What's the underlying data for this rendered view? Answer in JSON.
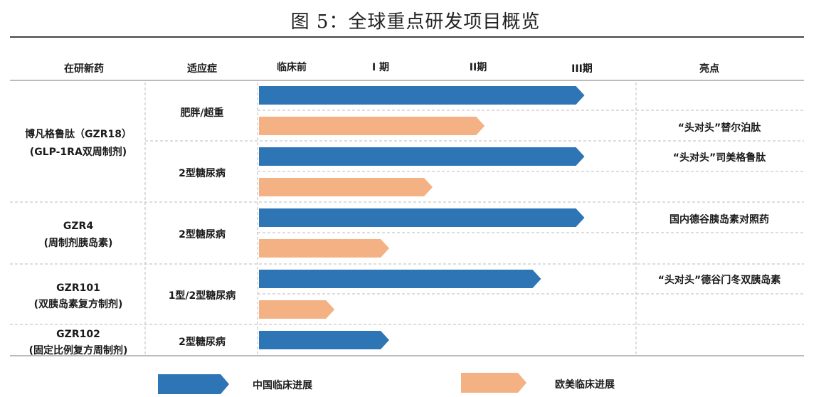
{
  "title": "图 5：全球重点研发项目概览",
  "header": {
    "drug": "在研新药",
    "indication": "适应症",
    "preclinical": "临床前",
    "phase1": "I 期",
    "phase2": "II期",
    "phase3": "III期",
    "highlight": "亮点"
  },
  "colors": {
    "china": "#2e75b6",
    "west": "#f4b183"
  },
  "legend": {
    "china": "中国临床进展",
    "west": "欧美临床进展"
  },
  "drugs": [
    {
      "name": "博凡格鲁肽（GZR18）",
      "sub": "(GLP-1RA双周制剂)"
    },
    {
      "name": "GZR4",
      "sub": "(周制剂胰岛素)"
    },
    {
      "name": "GZR101",
      "sub": "(双胰岛素复方制剂)"
    },
    {
      "name": "GZR102",
      "sub": "(固定比例复方周制剂)"
    }
  ],
  "indications": [
    "肥胖/超重",
    "2型糖尿病",
    "2型糖尿病",
    "1型/2型糖尿病",
    "2型糖尿病"
  ],
  "highlights": [
    "“头对头”替尔泊肽",
    "“头对头”司美格鲁肽",
    "国内德谷胰岛素对照药",
    "“头对头”德谷门冬双胰岛素"
  ],
  "chart_data": {
    "type": "bar",
    "orientation": "horizontal",
    "stage_categories": [
      "临床前",
      "I 期",
      "II期",
      "III期"
    ],
    "bars": [
      {
        "drug": "博凡格鲁肽（GZR18）",
        "indication": "肥胖/超重",
        "region": "中国临床进展",
        "progress": 3.75
      },
      {
        "drug": "博凡格鲁肽（GZR18）",
        "indication": "肥胖/超重",
        "region": "欧美临床进展",
        "progress": 2.6
      },
      {
        "drug": "博凡格鲁肽（GZR18）",
        "indication": "2型糖尿病",
        "region": "中国临床进展",
        "progress": 3.75
      },
      {
        "drug": "博凡格鲁肽（GZR18）",
        "indication": "2型糖尿病",
        "region": "欧美临床进展",
        "progress": 2.0
      },
      {
        "drug": "GZR4",
        "indication": "2型糖尿病",
        "region": "中国临床进展",
        "progress": 3.75
      },
      {
        "drug": "GZR4",
        "indication": "2型糖尿病",
        "region": "欧美临床进展",
        "progress": 1.5
      },
      {
        "drug": "GZR101",
        "indication": "1型/2型糖尿病",
        "region": "中国临床进展",
        "progress": 3.25
      },
      {
        "drug": "GZR101",
        "indication": "1型/2型糖尿病",
        "region": "欧美临床进展",
        "progress": 0.87
      },
      {
        "drug": "GZR102",
        "indication": "2型糖尿病",
        "region": "中国临床进展",
        "progress": 1.5
      }
    ]
  }
}
